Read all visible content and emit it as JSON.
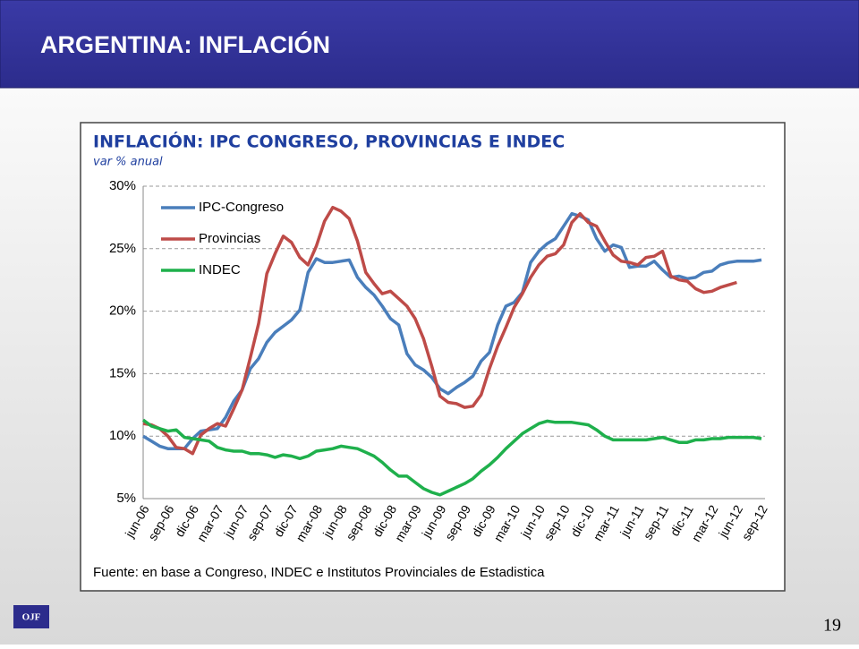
{
  "slide": {
    "title": "ARGENTINA: INFLACIÓN",
    "page_number": "19",
    "logo": "OJF"
  },
  "chart_data": {
    "type": "line",
    "title": "INFLACIÓN: IPC CONGRESO, PROVINCIAS E INDEC",
    "subtitle": "var % anual",
    "source": "Fuente: en base a Congreso, INDEC e Institutos Provinciales de Estadistica",
    "categories": [
      "jun-06",
      null,
      null,
      "sep-06",
      null,
      null,
      "dic-06",
      null,
      null,
      "mar-07",
      null,
      null,
      "jun-07",
      null,
      null,
      "sep-07",
      null,
      null,
      "dic-07",
      null,
      null,
      "mar-08",
      null,
      null,
      "jun-08",
      null,
      null,
      "sep-08",
      null,
      null,
      "dic-08",
      null,
      null,
      "mar-09",
      null,
      null,
      "jun-09",
      null,
      null,
      "sep-09",
      null,
      null,
      "dic-09",
      null,
      null,
      "mar-10",
      null,
      null,
      "jun-10",
      null,
      null,
      "sep-10",
      null,
      null,
      "dic-10",
      null,
      null,
      "mar-11",
      null,
      null,
      "jun-11",
      null,
      null,
      "sep-11",
      null,
      null,
      "dic-11",
      null,
      null,
      "mar-12",
      null,
      null,
      "jun-12",
      null,
      null,
      "sep-12"
    ],
    "series": [
      {
        "name": "IPC-Congreso",
        "color": "#4a7ebb",
        "values": [
          10.0,
          9.6,
          9.2,
          9.0,
          9.0,
          9.0,
          9.8,
          10.4,
          10.5,
          10.6,
          11.5,
          12.8,
          13.7,
          15.4,
          16.2,
          17.5,
          18.3,
          18.8,
          19.3,
          20.1,
          23.1,
          24.2,
          23.9,
          23.9,
          24.0,
          24.1,
          22.7,
          21.9,
          21.3,
          20.4,
          19.4,
          18.9,
          16.6,
          15.7,
          15.3,
          14.7,
          13.8,
          13.4,
          13.9,
          14.3,
          14.8,
          16.0,
          16.7,
          18.9,
          20.4,
          20.7,
          21.5,
          23.9,
          24.8,
          25.4,
          25.8,
          26.8,
          27.8,
          27.6,
          27.3,
          25.8,
          24.8,
          25.3,
          25.1,
          23.5,
          23.6,
          23.6,
          24.0,
          23.3,
          22.7,
          22.8,
          22.6,
          22.7,
          23.1,
          23.2,
          23.7,
          23.9,
          24.0,
          24.0,
          24.0,
          24.1
        ]
      },
      {
        "name": "Provincias",
        "color": "#be4b48",
        "values": [
          11.0,
          10.9,
          10.6,
          10.0,
          9.1,
          9.0,
          8.6,
          10.1,
          10.6,
          11.0,
          10.8,
          12.2,
          13.7,
          16.3,
          19.0,
          23.0,
          24.6,
          26.0,
          25.5,
          24.3,
          23.7,
          25.2,
          27.2,
          28.3,
          28.0,
          27.4,
          25.6,
          23.1,
          22.2,
          21.4,
          21.6,
          21.0,
          20.4,
          19.4,
          17.8,
          15.6,
          13.2,
          12.7,
          12.6,
          12.3,
          12.4,
          13.3,
          15.4,
          17.2,
          18.7,
          20.3,
          21.4,
          22.7,
          23.7,
          24.4,
          24.6,
          25.3,
          27.1,
          27.8,
          27.1,
          26.8,
          25.6,
          24.5,
          24.0,
          23.9,
          23.7,
          24.3,
          24.4,
          24.8,
          22.8,
          22.5,
          22.4,
          21.8,
          21.5,
          21.6,
          21.9,
          22.1,
          22.3,
          null,
          null,
          null
        ]
      },
      {
        "name": "INDEC",
        "color": "#1fb04c",
        "values": [
          11.3,
          10.8,
          10.6,
          10.4,
          10.5,
          9.9,
          9.8,
          9.7,
          9.6,
          9.1,
          8.9,
          8.8,
          8.8,
          8.6,
          8.6,
          8.5,
          8.3,
          8.5,
          8.4,
          8.2,
          8.4,
          8.8,
          8.9,
          9.0,
          9.2,
          9.1,
          9.0,
          8.7,
          8.4,
          7.9,
          7.3,
          6.8,
          6.8,
          6.3,
          5.8,
          5.5,
          5.3,
          5.6,
          5.9,
          6.2,
          6.6,
          7.2,
          7.7,
          8.3,
          9.0,
          9.6,
          10.2,
          10.6,
          11.0,
          11.2,
          11.1,
          11.1,
          11.1,
          11.0,
          10.9,
          10.5,
          10.0,
          9.7,
          9.7,
          9.7,
          9.7,
          9.7,
          9.8,
          9.9,
          9.7,
          9.5,
          9.5,
          9.7,
          9.7,
          9.8,
          9.8,
          9.9,
          9.9,
          9.9,
          9.9,
          9.8
        ]
      }
    ],
    "ylim": [
      5,
      30
    ],
    "yticks": [
      {
        "value": 5,
        "label": "5%"
      },
      {
        "value": 10,
        "label": "10%"
      },
      {
        "value": 15,
        "label": "15%"
      },
      {
        "value": 20,
        "label": "20%"
      },
      {
        "value": 25,
        "label": "25%"
      },
      {
        "value": 30,
        "label": "30%"
      }
    ],
    "grid": true,
    "legend": "upper left"
  }
}
